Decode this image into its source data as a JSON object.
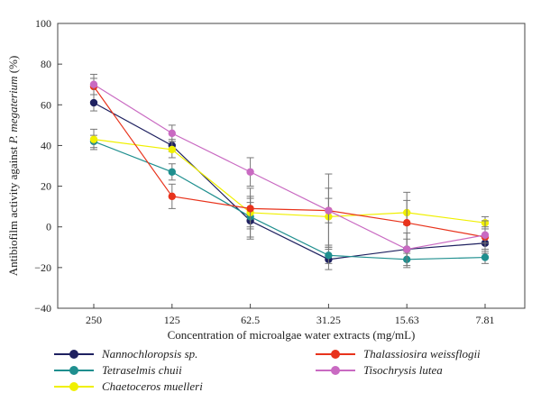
{
  "chart_data": {
    "type": "line",
    "categories": [
      "250",
      "125",
      "62.5",
      "31.25",
      "15.63",
      "7.81"
    ],
    "xlabel": "Concentration of microalgae water extracts (mg/mL)",
    "ylabel_prefix": "Antibiofilm activity against ",
    "ylabel_italic": "P. megaterium",
    "ylabel_suffix": " (%)",
    "ylim": [
      -40,
      100
    ],
    "yticks": [
      "100",
      "80",
      "60",
      "40",
      "20",
      "0",
      "−20",
      "−40"
    ],
    "ytick_values": [
      100,
      80,
      60,
      40,
      20,
      0,
      -20,
      -40
    ],
    "grid": false,
    "legend_position": "bottom",
    "series": [
      {
        "name": "Nannochloropsis sp.",
        "color": "#1f2160",
        "values": [
          61,
          40,
          3,
          -16,
          -11,
          -8
        ],
        "errors": [
          4,
          3,
          9,
          5,
          5,
          3
        ]
      },
      {
        "name": "Tetraselmis chuii",
        "color": "#1f8f8f",
        "values": [
          42,
          27,
          5,
          -14,
          -16,
          -15
        ],
        "errors": [
          3,
          4,
          10,
          4,
          4,
          3
        ]
      },
      {
        "name": "Chaetoceros muelleri",
        "color": "#f0f000",
        "values": [
          43,
          38,
          7,
          5,
          7,
          2
        ],
        "errors": [
          5,
          4,
          7,
          14,
          6,
          3
        ]
      },
      {
        "name": "Thalassiosira weissflogii",
        "color": "#e8331c",
        "values": [
          69,
          15,
          9,
          8,
          2,
          -5
        ],
        "errors": [
          4,
          6,
          10,
          18,
          15,
          8
        ]
      },
      {
        "name": "Tisochrysis lutea",
        "color": "#c96ac2",
        "values": [
          70,
          46,
          27,
          8,
          -11,
          -4
        ],
        "errors": [
          5,
          4,
          7,
          6,
          8,
          4
        ]
      }
    ]
  }
}
